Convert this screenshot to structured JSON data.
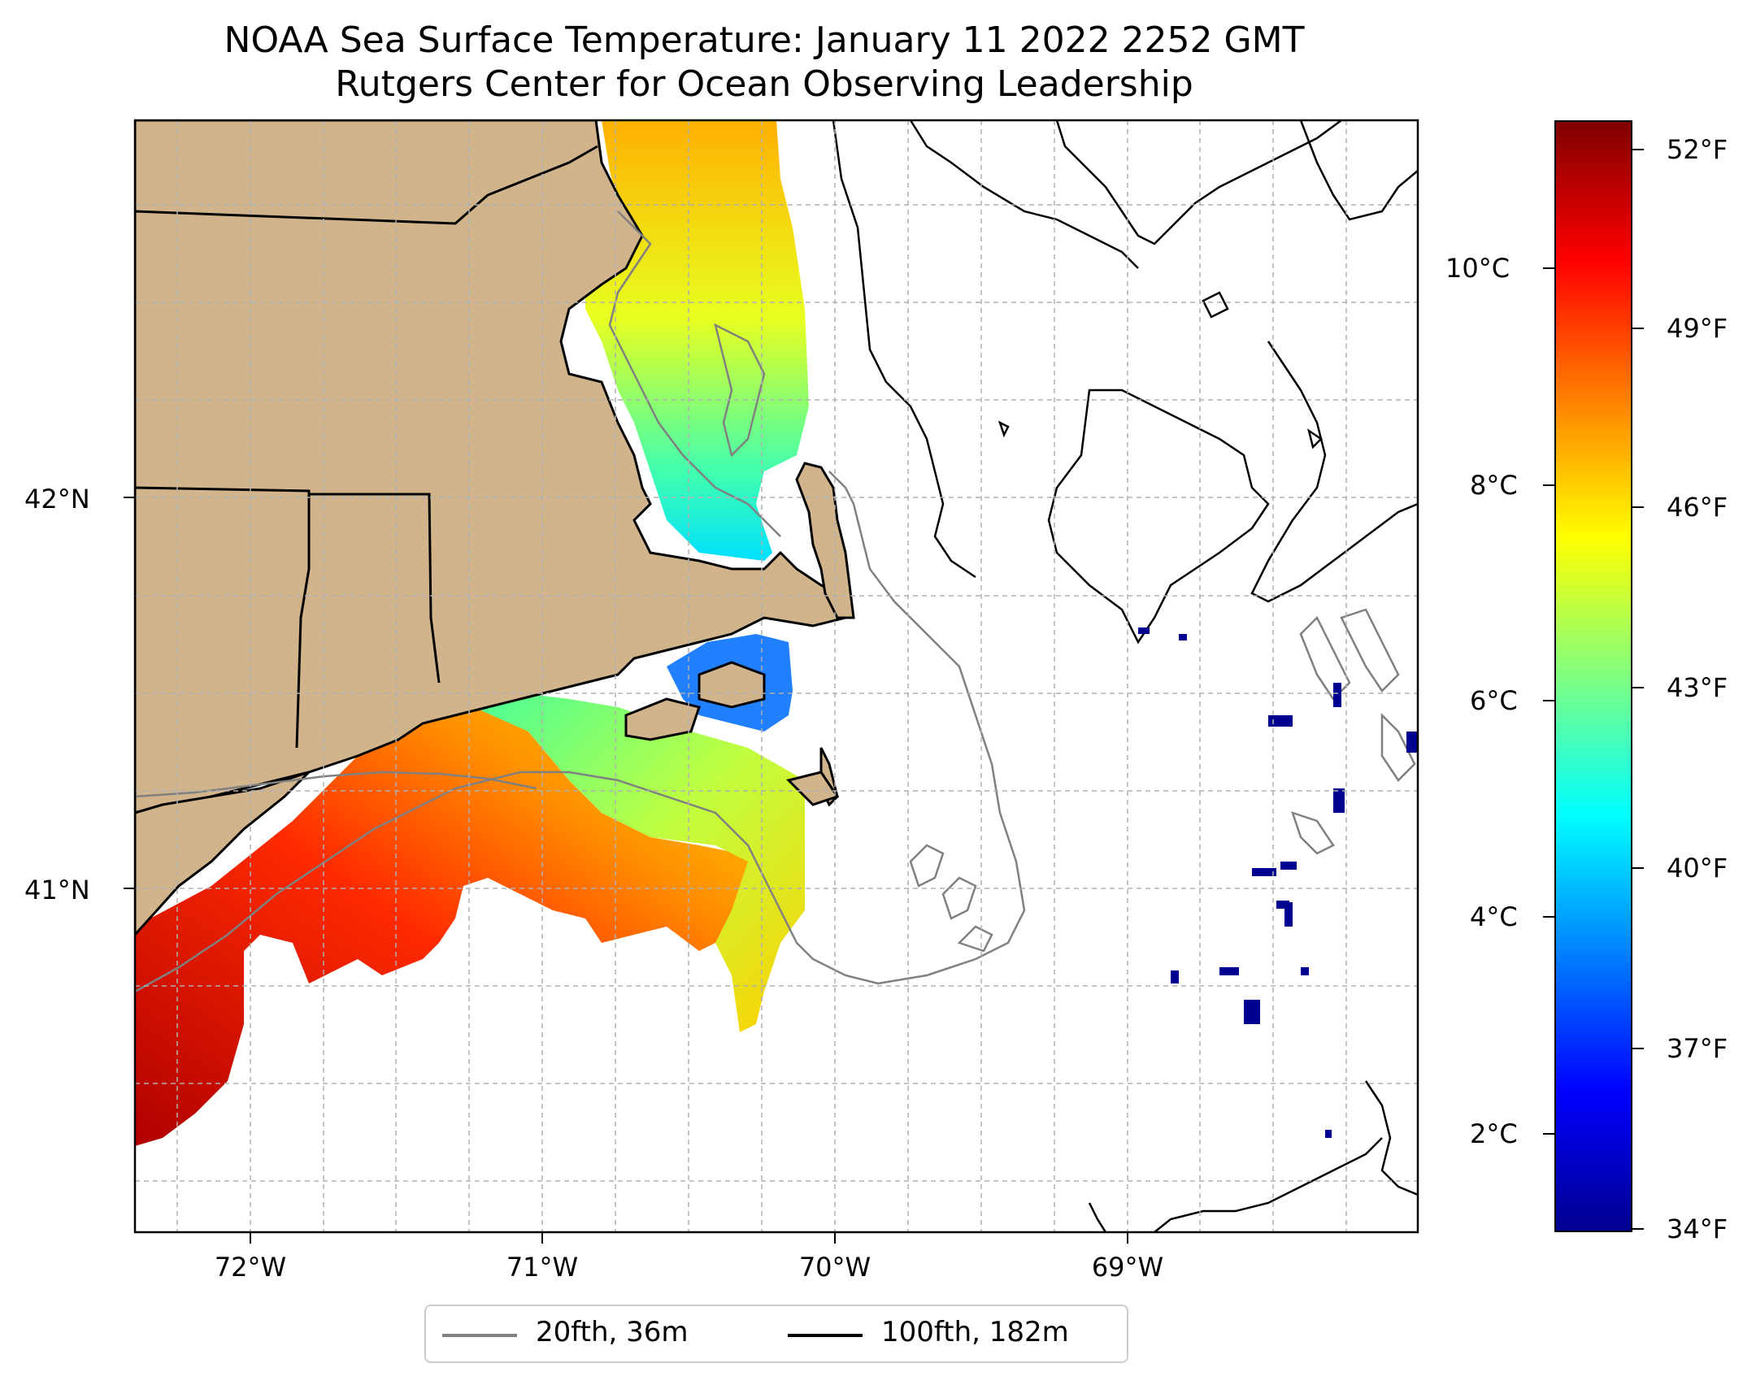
{
  "title": {
    "line1": "NOAA Sea Surface Temperature: January 11 2022 2252 GMT",
    "line2": "Rutgers Center for Ocean Observing Leadership"
  },
  "axes": {
    "x_ticks": [
      "72°W",
      "71°W",
      "70°W",
      "69°W"
    ],
    "y_ticks": [
      "42°N",
      "41°N"
    ]
  },
  "colorbar": {
    "celsius_ticks": [
      "10°C",
      "8°C",
      "6°C",
      "4°C",
      "2°C"
    ],
    "fahrenheit_ticks": [
      "52°F",
      "49°F",
      "46°F",
      "43°F",
      "40°F",
      "37°F",
      "34°F"
    ],
    "colors": [
      "#00008f",
      "#0000ff",
      "#0080ff",
      "#00ffff",
      "#80ff80",
      "#ffff00",
      "#ff8000",
      "#ff0000",
      "#800000"
    ]
  },
  "legend": {
    "items": [
      {
        "label": "20fth, 36m",
        "color": "#808080"
      },
      {
        "label": "100fth, 182m",
        "color": "#000000"
      }
    ]
  },
  "map_colors": {
    "land": "#d2b48c",
    "grid": "#b0b0b0"
  }
}
